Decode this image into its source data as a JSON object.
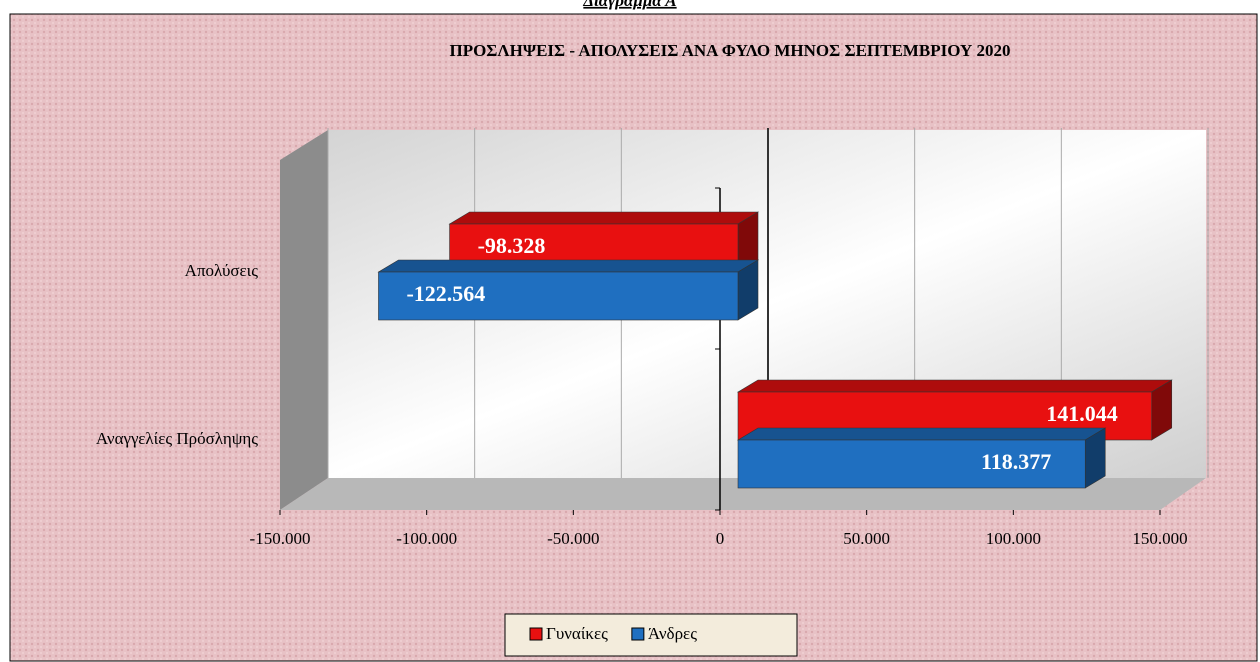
{
  "heading": "Διάγραμμα Α",
  "chart_data": {
    "type": "bar",
    "orientation": "horizontal",
    "title": "ΠΡΟΣΛΗΨΕΙΣ - ΑΠΟΛΥΣΕΙΣ ΑΝΑ ΦΥΛΟ ΜΗΝΟΣ ΣΕΠΤΕΜΒΡΙΟΥ  2020",
    "categories": [
      "Απολύσεις",
      "Αναγγελίες Πρόσληψης"
    ],
    "series": [
      {
        "name": "Γυναίκες",
        "color": "#e81010",
        "values": [
          -98328,
          141044
        ],
        "value_labels": [
          "-98.328",
          "141.044"
        ]
      },
      {
        "name": "Άνδρες",
        "color": "#1f6fc0",
        "values": [
          -122564,
          118377
        ],
        "value_labels": [
          "-122.564",
          "118.377"
        ]
      }
    ],
    "xlim": [
      -150000,
      150000
    ],
    "xticks": [
      {
        "value": -150000,
        "label": "-150.000"
      },
      {
        "value": -100000,
        "label": "-100.000"
      },
      {
        "value": -50000,
        "label": "-50.000"
      },
      0,
      {
        "value": 50000,
        "label": "50.000"
      },
      {
        "value": 100000,
        "label": "100.000"
      },
      {
        "value": 150000,
        "label": "150.000"
      }
    ],
    "grid": true,
    "legend": "bottom"
  }
}
